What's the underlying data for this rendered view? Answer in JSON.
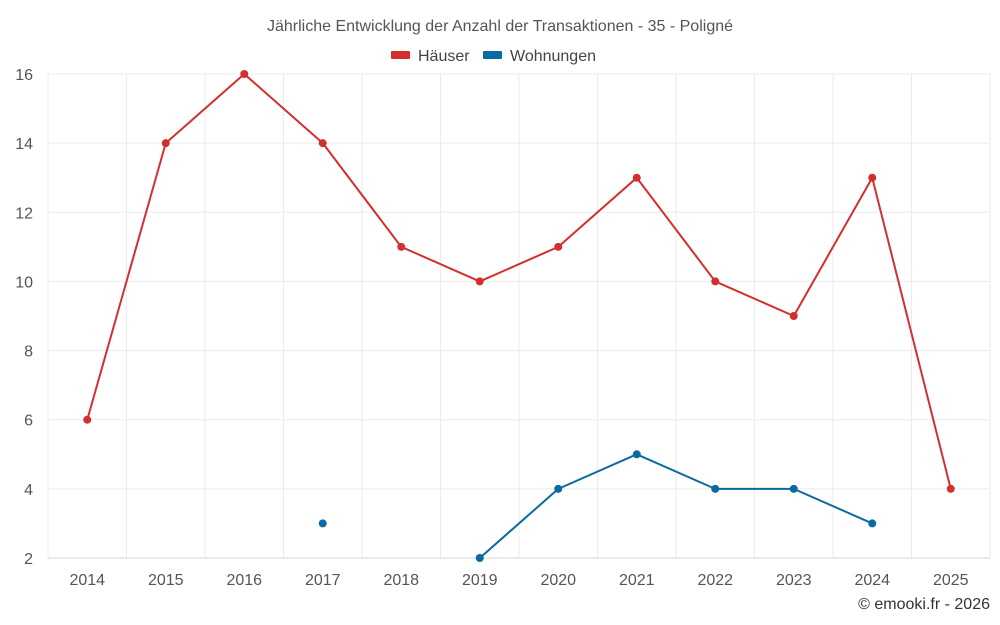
{
  "chart_data": {
    "type": "line",
    "title": "Jährliche Entwicklung der Anzahl der Transaktionen - 35 - Poligné",
    "categories": [
      "2014",
      "2015",
      "2016",
      "2017",
      "2018",
      "2019",
      "2020",
      "2021",
      "2022",
      "2023",
      "2024",
      "2025"
    ],
    "series": [
      {
        "name": "Häuser",
        "color": "#d32f2f",
        "values": [
          6,
          14,
          16,
          14,
          11,
          10,
          11,
          13,
          10,
          9,
          13,
          4
        ]
      },
      {
        "name": "Wohnungen",
        "color": "#0a6aa1",
        "values": [
          null,
          null,
          null,
          3,
          null,
          2,
          4,
          5,
          4,
          4,
          3,
          null
        ]
      }
    ],
    "ylim": [
      2,
      16
    ],
    "yticks": [
      2,
      4,
      6,
      8,
      10,
      12,
      14,
      16
    ],
    "ytick_labels": [
      "2",
      "4",
      "6",
      "8",
      "10",
      "12",
      "14",
      "16"
    ],
    "grid": true,
    "legend": "top-center",
    "xlabel": "",
    "ylabel": ""
  },
  "credit": "© emooki.fr - 2026"
}
